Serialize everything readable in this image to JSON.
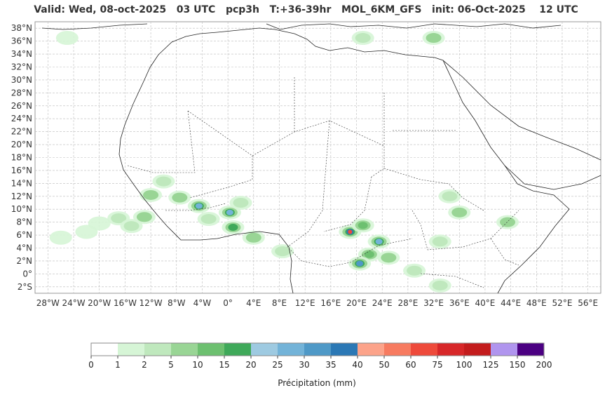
{
  "title": "Valid: Wed, 08-oct-2025   03 UTC   pcp3h   T:+36-39hr   MOL_6KM_GFS   init: 06-Oct-2025    12 UTC",
  "map": {
    "lon_range": [
      -30,
      58
    ],
    "lat_range": [
      -3,
      39
    ],
    "lat_ticks": [
      {
        "v": 38,
        "label": "38°N"
      },
      {
        "v": 36,
        "label": "36°N"
      },
      {
        "v": 34,
        "label": "34°N"
      },
      {
        "v": 32,
        "label": "32°N"
      },
      {
        "v": 30,
        "label": "30°N"
      },
      {
        "v": 28,
        "label": "28°N"
      },
      {
        "v": 26,
        "label": "26°N"
      },
      {
        "v": 24,
        "label": "24°N"
      },
      {
        "v": 22,
        "label": "22°N"
      },
      {
        "v": 20,
        "label": "20°N"
      },
      {
        "v": 18,
        "label": "18°N"
      },
      {
        "v": 16,
        "label": "16°N"
      },
      {
        "v": 14,
        "label": "14°N"
      },
      {
        "v": 12,
        "label": "12°N"
      },
      {
        "v": 10,
        "label": "10°N"
      },
      {
        "v": 8,
        "label": "8°N"
      },
      {
        "v": 6,
        "label": "6°N"
      },
      {
        "v": 4,
        "label": "4°N"
      },
      {
        "v": 2,
        "label": "2°N"
      },
      {
        "v": 0,
        "label": "0°"
      },
      {
        "v": -2,
        "label": "2°S"
      }
    ],
    "lon_ticks": [
      {
        "v": -28,
        "label": "28°W"
      },
      {
        "v": -24,
        "label": "24°W"
      },
      {
        "v": -20,
        "label": "20°W"
      },
      {
        "v": -16,
        "label": "16°W"
      },
      {
        "v": -12,
        "label": "12°W"
      },
      {
        "v": -8,
        "label": "8°W"
      },
      {
        "v": -4,
        "label": "4°W"
      },
      {
        "v": 0,
        "label": "0°"
      },
      {
        "v": 4,
        "label": "4°E"
      },
      {
        "v": 8,
        "label": "8°E"
      },
      {
        "v": 12,
        "label": "12°E"
      },
      {
        "v": 16,
        "label": "16°E"
      },
      {
        "v": 20,
        "label": "20°E"
      },
      {
        "v": 24,
        "label": "24°E"
      },
      {
        "v": 28,
        "label": "28°E"
      },
      {
        "v": 32,
        "label": "32°E"
      },
      {
        "v": 36,
        "label": "36°E"
      },
      {
        "v": 40,
        "label": "40°E"
      },
      {
        "v": 44,
        "label": "44°E"
      },
      {
        "v": 48,
        "label": "48°E"
      },
      {
        "v": 52,
        "label": "52°E"
      },
      {
        "v": 56,
        "label": "56°E"
      }
    ],
    "precip_cells": [
      {
        "lon": -26,
        "lat": 5.6,
        "level": 1
      },
      {
        "lon": -22,
        "lat": 6.5,
        "level": 1
      },
      {
        "lon": -20,
        "lat": 7.8,
        "level": 1
      },
      {
        "lon": -17,
        "lat": 8.6,
        "level": 2
      },
      {
        "lon": -15,
        "lat": 7.4,
        "level": 2
      },
      {
        "lon": -13,
        "lat": 8.8,
        "level": 3
      },
      {
        "lon": -12,
        "lat": 12.2,
        "level": 3
      },
      {
        "lon": -10,
        "lat": 14.3,
        "level": 2
      },
      {
        "lon": -7.5,
        "lat": 11.8,
        "level": 3
      },
      {
        "lon": -4.5,
        "lat": 10.5,
        "level": 7
      },
      {
        "lon": -3,
        "lat": 8.5,
        "level": 2
      },
      {
        "lon": 0.3,
        "lat": 9.5,
        "level": 7
      },
      {
        "lon": 0.8,
        "lat": 7.2,
        "level": 5
      },
      {
        "lon": 2,
        "lat": 11,
        "level": 2
      },
      {
        "lon": 4,
        "lat": 5.6,
        "level": 3
      },
      {
        "lon": 8.5,
        "lat": 3.5,
        "level": 2
      },
      {
        "lon": 19,
        "lat": 6.5,
        "level": 12
      },
      {
        "lon": 21,
        "lat": 7.5,
        "level": 4
      },
      {
        "lon": 23.5,
        "lat": 5,
        "level": 7
      },
      {
        "lon": 22,
        "lat": 3,
        "level": 4
      },
      {
        "lon": 20.5,
        "lat": 1.6,
        "level": 8
      },
      {
        "lon": 25,
        "lat": 2.5,
        "level": 3
      },
      {
        "lon": 29,
        "lat": 0.5,
        "level": 2
      },
      {
        "lon": 33,
        "lat": 5,
        "level": 2
      },
      {
        "lon": 36,
        "lat": 9.5,
        "level": 3
      },
      {
        "lon": 34.5,
        "lat": 12,
        "level": 2
      },
      {
        "lon": 43.5,
        "lat": 8,
        "level": 3
      },
      {
        "lon": 33,
        "lat": -1.8,
        "level": 2
      },
      {
        "lon": 21,
        "lat": 36.5,
        "level": 2
      },
      {
        "lon": 32,
        "lat": 36.5,
        "level": 3
      },
      {
        "lon": -25,
        "lat": 36.5,
        "level": 1
      }
    ]
  },
  "colorbar": {
    "label": "Précipitation (mm)",
    "ticks": [
      "0",
      "1",
      "2",
      "5",
      "10",
      "15",
      "20",
      "25",
      "30",
      "35",
      "40",
      "50",
      "60",
      "75",
      "100",
      "125",
      "150",
      "200"
    ],
    "colors": [
      "#ffffff",
      "#d6f5d6",
      "#bfe8bd",
      "#99d595",
      "#6dc070",
      "#3fa95a",
      "#9ecae1",
      "#73b3d8",
      "#4f99c7",
      "#2b78b5",
      "#fca38a",
      "#f77b60",
      "#ee4a3b",
      "#d72729",
      "#c31c1d",
      "#b095ee",
      "#4b0082"
    ]
  }
}
